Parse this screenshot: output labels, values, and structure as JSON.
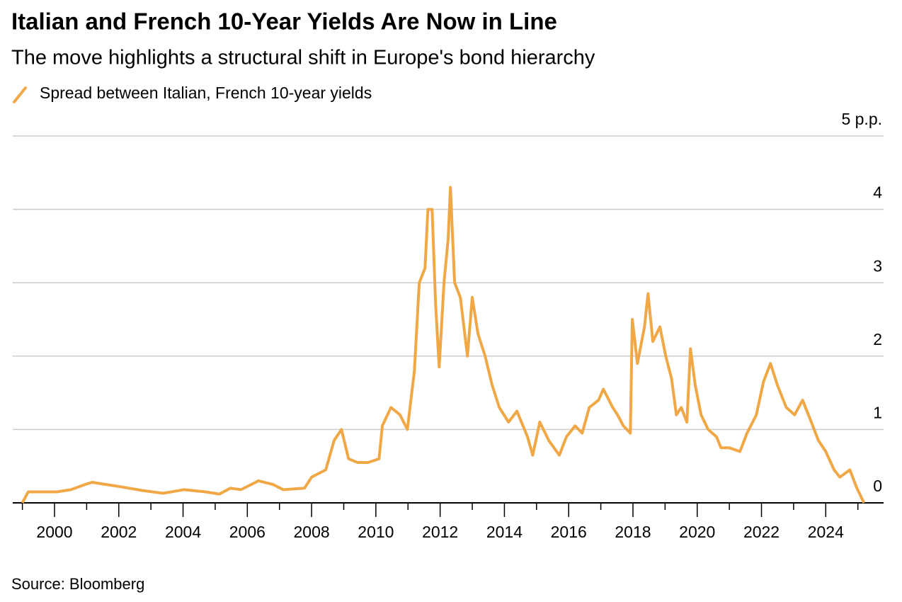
{
  "chart_data": {
    "type": "line",
    "title": "Italian and French 10-Year Yields Are Now in Line",
    "subtitle": "The move highlights a structural shift in Europe's bond hierarchy",
    "source": "Source: Bloomberg",
    "x": [
      1999.0,
      1999.18,
      1999.6,
      2000.07,
      2000.51,
      2000.95,
      2001.17,
      2001.61,
      2002.05,
      2002.71,
      2003.37,
      2004.03,
      2004.7,
      2005.13,
      2005.47,
      2005.8,
      2006.35,
      2006.8,
      2007.12,
      2007.78,
      2008.0,
      2008.44,
      2008.7,
      2008.93,
      2009.15,
      2009.43,
      2009.76,
      2010.1,
      2010.2,
      2010.47,
      2010.75,
      2010.98,
      2011.2,
      2011.35,
      2011.53,
      2011.62,
      2011.75,
      2011.86,
      2011.97,
      2012.12,
      2012.25,
      2012.32,
      2012.45,
      2012.63,
      2012.85,
      2013.0,
      2013.18,
      2013.4,
      2013.62,
      2013.84,
      2014.13,
      2014.39,
      2014.72,
      2014.88,
      2015.1,
      2015.38,
      2015.71,
      2015.93,
      2016.2,
      2016.42,
      2016.64,
      2016.93,
      2017.08,
      2017.37,
      2017.52,
      2017.7,
      2017.92,
      2017.98,
      2018.14,
      2018.36,
      2018.47,
      2018.62,
      2018.84,
      2019.02,
      2019.2,
      2019.35,
      2019.5,
      2019.68,
      2019.79,
      2019.94,
      2020.12,
      2020.34,
      2020.6,
      2020.74,
      2021.0,
      2021.33,
      2021.55,
      2021.84,
      2022.06,
      2022.28,
      2022.5,
      2022.77,
      2023.03,
      2023.28,
      2023.55,
      2023.77,
      2024.0,
      2024.26,
      2024.44,
      2024.75,
      2024.97,
      2025.19
    ],
    "series": [
      {
        "name": "Spread between Italian, French 10-year yields",
        "color": "#f0a847",
        "values": [
          0.0,
          0.15,
          0.15,
          0.15,
          0.18,
          0.25,
          0.28,
          0.25,
          0.22,
          0.17,
          0.13,
          0.18,
          0.15,
          0.12,
          0.2,
          0.18,
          0.3,
          0.25,
          0.18,
          0.2,
          0.35,
          0.45,
          0.85,
          1.0,
          0.6,
          0.55,
          0.55,
          0.6,
          1.05,
          1.3,
          1.2,
          1.0,
          1.8,
          3.0,
          3.2,
          4.0,
          4.0,
          2.7,
          1.85,
          3.0,
          3.6,
          4.3,
          3.0,
          2.8,
          2.0,
          2.8,
          2.3,
          2.0,
          1.6,
          1.3,
          1.1,
          1.25,
          0.9,
          0.65,
          1.1,
          0.85,
          0.65,
          0.9,
          1.05,
          0.95,
          1.3,
          1.4,
          1.55,
          1.3,
          1.2,
          1.05,
          0.95,
          2.5,
          1.9,
          2.4,
          2.85,
          2.2,
          2.4,
          2.0,
          1.7,
          1.2,
          1.3,
          1.1,
          2.1,
          1.6,
          1.2,
          1.0,
          0.9,
          0.75,
          0.75,
          0.7,
          0.95,
          1.2,
          1.65,
          1.9,
          1.6,
          1.3,
          1.2,
          1.4,
          1.1,
          0.85,
          0.7,
          0.45,
          0.35,
          0.45,
          0.2,
          0.0
        ]
      }
    ],
    "xlim": [
      1998.7,
      2025.8
    ],
    "xticks": [
      2000,
      2002,
      2004,
      2006,
      2008,
      2010,
      2012,
      2014,
      2016,
      2018,
      2020,
      2022,
      2024
    ],
    "xminorticks": [
      1999,
      2001,
      2003,
      2005,
      2007,
      2009,
      2011,
      2013,
      2015,
      2017,
      2019,
      2021,
      2023,
      2025
    ],
    "ylim": [
      0,
      5
    ],
    "yticks": [
      0,
      1,
      2,
      3,
      4,
      {
        "value": 5,
        "label": "5 p.p."
      }
    ],
    "grid": true
  }
}
